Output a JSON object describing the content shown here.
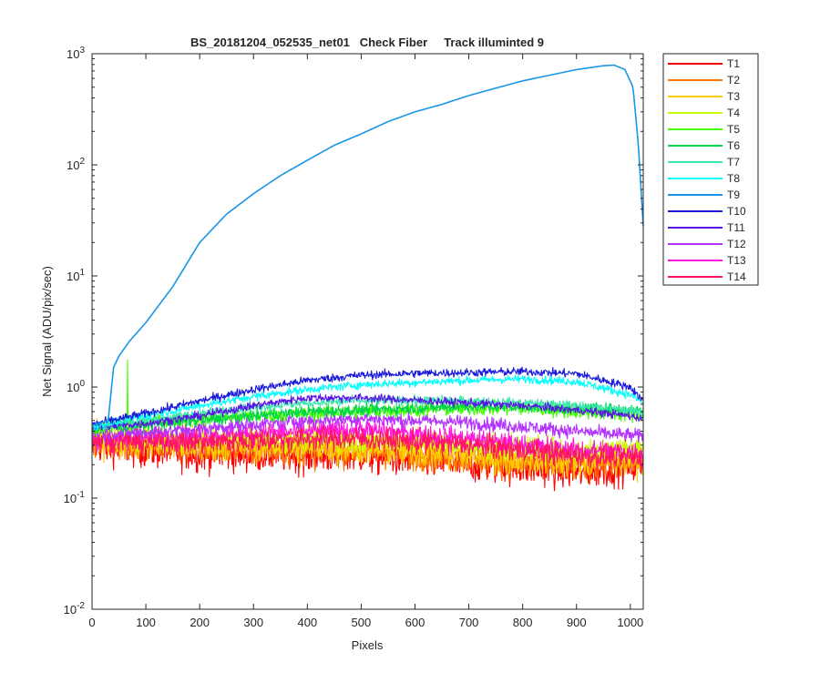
{
  "chart_data": {
    "type": "line",
    "title": "BS_20181204_052535_net01   Check Fiber     Track illuminted 9",
    "xlabel": "Pixels",
    "ylabel": "Net Signal (ADU/pix/sec)",
    "x_scale": "linear",
    "y_scale": "log",
    "xlim": [
      0,
      1024
    ],
    "ylim": [
      0.01,
      1000
    ],
    "x_ticks": [
      0,
      100,
      200,
      300,
      400,
      500,
      600,
      700,
      800,
      900,
      1000
    ],
    "y_ticks": [
      {
        "value": 0.01,
        "base": "10",
        "exp": "-2"
      },
      {
        "value": 0.1,
        "base": "10",
        "exp": "-1"
      },
      {
        "value": 1,
        "base": "10",
        "exp": "0"
      },
      {
        "value": 10,
        "base": "10",
        "exp": "1"
      },
      {
        "value": 100,
        "base": "10",
        "exp": "2"
      },
      {
        "value": 1000,
        "base": "10",
        "exp": "3"
      }
    ],
    "grid": false,
    "legend_position": "outside-right",
    "series": [
      {
        "name": "T1",
        "color": "#ff0000",
        "noise": 0.3,
        "points": [
          [
            0,
            0.3
          ],
          [
            100,
            0.27
          ],
          [
            200,
            0.25
          ],
          [
            300,
            0.25
          ],
          [
            400,
            0.24
          ],
          [
            500,
            0.24
          ],
          [
            600,
            0.22
          ],
          [
            700,
            0.2
          ],
          [
            800,
            0.19
          ],
          [
            900,
            0.17
          ],
          [
            1024,
            0.2
          ]
        ]
      },
      {
        "name": "T2",
        "color": "#ff7700",
        "noise": 0.28,
        "points": [
          [
            0,
            0.32
          ],
          [
            100,
            0.3
          ],
          [
            200,
            0.28
          ],
          [
            300,
            0.28
          ],
          [
            400,
            0.27
          ],
          [
            500,
            0.27
          ],
          [
            600,
            0.25
          ],
          [
            700,
            0.23
          ],
          [
            800,
            0.21
          ],
          [
            900,
            0.2
          ],
          [
            1024,
            0.22
          ]
        ]
      },
      {
        "name": "T3",
        "color": "#ffcc00",
        "noise": 0.27,
        "points": [
          [
            0,
            0.33
          ],
          [
            100,
            0.31
          ],
          [
            200,
            0.29
          ],
          [
            300,
            0.3
          ],
          [
            400,
            0.29
          ],
          [
            500,
            0.28
          ],
          [
            600,
            0.26
          ],
          [
            700,
            0.24
          ],
          [
            800,
            0.22
          ],
          [
            900,
            0.21
          ],
          [
            1024,
            0.23
          ]
        ]
      },
      {
        "name": "T4",
        "color": "#c8ff00",
        "noise": 0.22,
        "points": [
          [
            0,
            0.36
          ],
          [
            100,
            0.35
          ],
          [
            200,
            0.34
          ],
          [
            300,
            0.35
          ],
          [
            400,
            0.34
          ],
          [
            500,
            0.33
          ],
          [
            600,
            0.32
          ],
          [
            700,
            0.3
          ],
          [
            800,
            0.28
          ],
          [
            900,
            0.27
          ],
          [
            1024,
            0.28
          ]
        ]
      },
      {
        "name": "T5",
        "color": "#44ff00",
        "noise": 0.12,
        "spike": [
          66,
          1.75
        ],
        "points": [
          [
            0,
            0.42
          ],
          [
            100,
            0.48
          ],
          [
            200,
            0.52
          ],
          [
            300,
            0.55
          ],
          [
            400,
            0.58
          ],
          [
            500,
            0.6
          ],
          [
            600,
            0.62
          ],
          [
            700,
            0.64
          ],
          [
            800,
            0.64
          ],
          [
            900,
            0.6
          ],
          [
            1024,
            0.55
          ]
        ]
      },
      {
        "name": "T6",
        "color": "#00d24a",
        "noise": 0.1,
        "points": [
          [
            0,
            0.42
          ],
          [
            100,
            0.46
          ],
          [
            200,
            0.5
          ],
          [
            300,
            0.55
          ],
          [
            400,
            0.6
          ],
          [
            500,
            0.62
          ],
          [
            600,
            0.65
          ],
          [
            700,
            0.67
          ],
          [
            800,
            0.66
          ],
          [
            900,
            0.64
          ],
          [
            1024,
            0.62
          ]
        ]
      },
      {
        "name": "T7",
        "color": "#3ce8b0",
        "noise": 0.08,
        "points": [
          [
            0,
            0.43
          ],
          [
            100,
            0.5
          ],
          [
            200,
            0.58
          ],
          [
            300,
            0.66
          ],
          [
            400,
            0.72
          ],
          [
            500,
            0.75
          ],
          [
            600,
            0.76
          ],
          [
            700,
            0.75
          ],
          [
            800,
            0.72
          ],
          [
            900,
            0.68
          ],
          [
            1024,
            0.6
          ]
        ]
      },
      {
        "name": "T8",
        "color": "#00ffff",
        "noise": 0.07,
        "points": [
          [
            0,
            0.44
          ],
          [
            100,
            0.55
          ],
          [
            200,
            0.68
          ],
          [
            300,
            0.82
          ],
          [
            400,
            0.95
          ],
          [
            500,
            1.05
          ],
          [
            600,
            1.1
          ],
          [
            700,
            1.15
          ],
          [
            800,
            1.18
          ],
          [
            900,
            1.12
          ],
          [
            1000,
            0.85
          ],
          [
            1024,
            0.72
          ]
        ]
      },
      {
        "name": "T9",
        "color": "#1a96e6",
        "noise": 0,
        "smooth": true,
        "points": [
          [
            0,
            0.45
          ],
          [
            30,
            0.5
          ],
          [
            40,
            1.5
          ],
          [
            50,
            1.9
          ],
          [
            70,
            2.6
          ],
          [
            100,
            3.8
          ],
          [
            150,
            8
          ],
          [
            200,
            20
          ],
          [
            250,
            36
          ],
          [
            300,
            55
          ],
          [
            350,
            80
          ],
          [
            400,
            110
          ],
          [
            450,
            150
          ],
          [
            500,
            190
          ],
          [
            550,
            245
          ],
          [
            600,
            300
          ],
          [
            650,
            350
          ],
          [
            700,
            420
          ],
          [
            750,
            490
          ],
          [
            800,
            570
          ],
          [
            850,
            640
          ],
          [
            900,
            720
          ],
          [
            950,
            780
          ],
          [
            970,
            790
          ],
          [
            990,
            720
          ],
          [
            1005,
            500
          ],
          [
            1015,
            150
          ],
          [
            1024,
            28
          ]
        ]
      },
      {
        "name": "T10",
        "color": "#1a1adc",
        "noise": 0.07,
        "points": [
          [
            0,
            0.46
          ],
          [
            100,
            0.58
          ],
          [
            200,
            0.75
          ],
          [
            300,
            0.95
          ],
          [
            400,
            1.15
          ],
          [
            500,
            1.28
          ],
          [
            600,
            1.33
          ],
          [
            700,
            1.35
          ],
          [
            800,
            1.38
          ],
          [
            900,
            1.32
          ],
          [
            1000,
            1.0
          ],
          [
            1024,
            0.75
          ]
        ]
      },
      {
        "name": "T11",
        "color": "#5a14e6",
        "noise": 0.07,
        "points": [
          [
            0,
            0.43
          ],
          [
            100,
            0.47
          ],
          [
            200,
            0.55
          ],
          [
            300,
            0.68
          ],
          [
            400,
            0.8
          ],
          [
            500,
            0.8
          ],
          [
            600,
            0.76
          ],
          [
            700,
            0.72
          ],
          [
            800,
            0.68
          ],
          [
            900,
            0.62
          ],
          [
            1000,
            0.55
          ],
          [
            1024,
            0.52
          ]
        ]
      },
      {
        "name": "T12",
        "color": "#b432ff",
        "noise": 0.12,
        "points": [
          [
            0,
            0.38
          ],
          [
            100,
            0.39
          ],
          [
            200,
            0.42
          ],
          [
            300,
            0.46
          ],
          [
            400,
            0.5
          ],
          [
            500,
            0.52
          ],
          [
            600,
            0.5
          ],
          [
            700,
            0.48
          ],
          [
            800,
            0.44
          ],
          [
            900,
            0.4
          ],
          [
            1024,
            0.36
          ]
        ]
      },
      {
        "name": "T13",
        "color": "#ff14dc",
        "noise": 0.18,
        "points": [
          [
            0,
            0.35
          ],
          [
            100,
            0.35
          ],
          [
            200,
            0.36
          ],
          [
            300,
            0.38
          ],
          [
            400,
            0.4
          ],
          [
            500,
            0.41
          ],
          [
            600,
            0.38
          ],
          [
            700,
            0.34
          ],
          [
            800,
            0.3
          ],
          [
            900,
            0.27
          ],
          [
            1024,
            0.26
          ]
        ]
      },
      {
        "name": "T14",
        "color": "#ff1464",
        "noise": 0.2,
        "points": [
          [
            0,
            0.33
          ],
          [
            100,
            0.32
          ],
          [
            200,
            0.32
          ],
          [
            300,
            0.33
          ],
          [
            400,
            0.34
          ],
          [
            500,
            0.34
          ],
          [
            600,
            0.32
          ],
          [
            700,
            0.3
          ],
          [
            800,
            0.27
          ],
          [
            900,
            0.24
          ],
          [
            1024,
            0.23
          ]
        ]
      }
    ]
  }
}
